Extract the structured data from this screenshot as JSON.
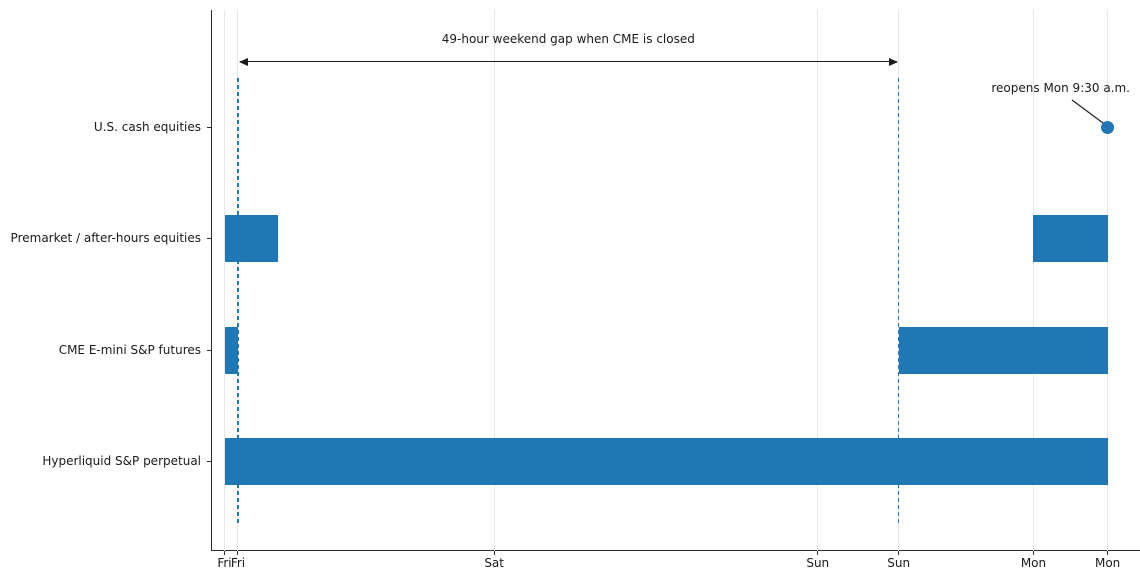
{
  "chart_data": {
    "type": "bar",
    "subtype": "gantt-timeline",
    "description": "Trading availability of S&P-linked markets across the weekend, plotted against time from Friday afternoon to Monday morning",
    "bar_color": "#1f77b4",
    "grid_color": "#e8e8e8",
    "axis_color": "#2b2b2b",
    "time_axis": {
      "unit": "hours_after_first_Fri_tick",
      "range": [
        -1.0,
        67.9
      ],
      "grid": "vertical_on",
      "ticks": [
        {
          "label": "Fri",
          "t": 0
        },
        {
          "label": "Fri",
          "t": 1
        },
        {
          "label": "Sat",
          "t": 20
        },
        {
          "label": "Sun",
          "t": 44
        },
        {
          "label": "Sun",
          "t": 50
        },
        {
          "label": "Mon",
          "t": 60
        },
        {
          "label": "Mon",
          "t": 65.5
        }
      ]
    },
    "rows": [
      {
        "label": "U.S. cash equities",
        "sessions": [],
        "marker_t": 65.5
      },
      {
        "label": "Premarket / after-hours equities",
        "sessions": [
          [
            0,
            4
          ],
          [
            60,
            65.5
          ]
        ]
      },
      {
        "label": "CME E-mini S&P futures",
        "sessions": [
          [
            0,
            1
          ],
          [
            50,
            65.5
          ]
        ]
      },
      {
        "label": "Hyperliquid S&P perpetual",
        "sessions": [
          [
            0,
            65.5
          ]
        ]
      }
    ],
    "dashed_guides_t": [
      1,
      50
    ],
    "gap_annotation": {
      "label": "49-hour weekend gap when CME is closed",
      "from_t": 1,
      "to_t": 50
    },
    "reopen_annotation": {
      "label": "reopens Mon 9:30 a.m.",
      "t": 65.5,
      "row": "U.S. cash equities"
    }
  }
}
